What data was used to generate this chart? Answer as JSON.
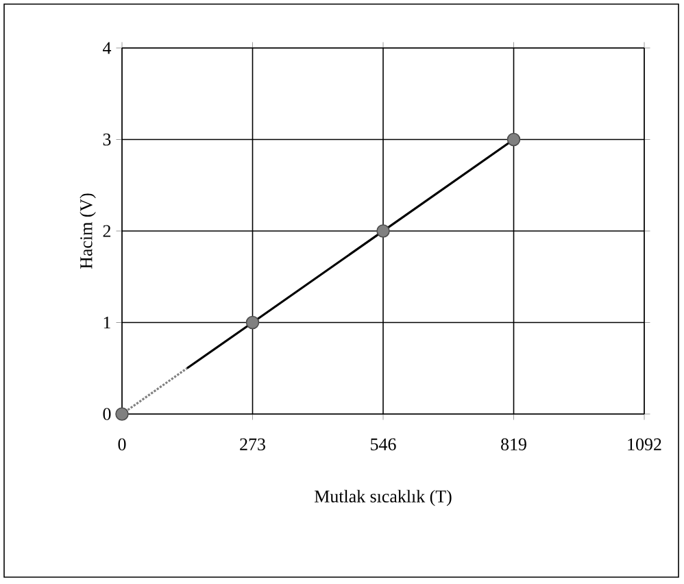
{
  "chart_data": {
    "type": "line",
    "xlabel": "Mutlak sıcaklık (T)",
    "ylabel": "Hacim (V)",
    "xlim": [
      0,
      1092
    ],
    "ylim": [
      0,
      4
    ],
    "xticks": [
      0,
      273,
      546,
      819,
      1092
    ],
    "yticks": [
      0,
      1,
      2,
      3,
      4
    ],
    "grid": true,
    "series": [
      {
        "color": "#808080",
        "x": [
          0,
          136
        ],
        "values": [
          0,
          0.5
        ],
        "line_style": "dotted",
        "marker": "none"
      },
      {
        "color": "#000000",
        "x": [
          136,
          273,
          546,
          819
        ],
        "values": [
          0.5,
          1,
          2,
          3
        ],
        "line_style": "solid",
        "marker": "none"
      },
      {
        "type": "scatter",
        "color": "#808080",
        "x": [
          0,
          273,
          546,
          819
        ],
        "values": [
          0,
          1,
          2,
          3
        ],
        "marker": "circle"
      }
    ]
  }
}
